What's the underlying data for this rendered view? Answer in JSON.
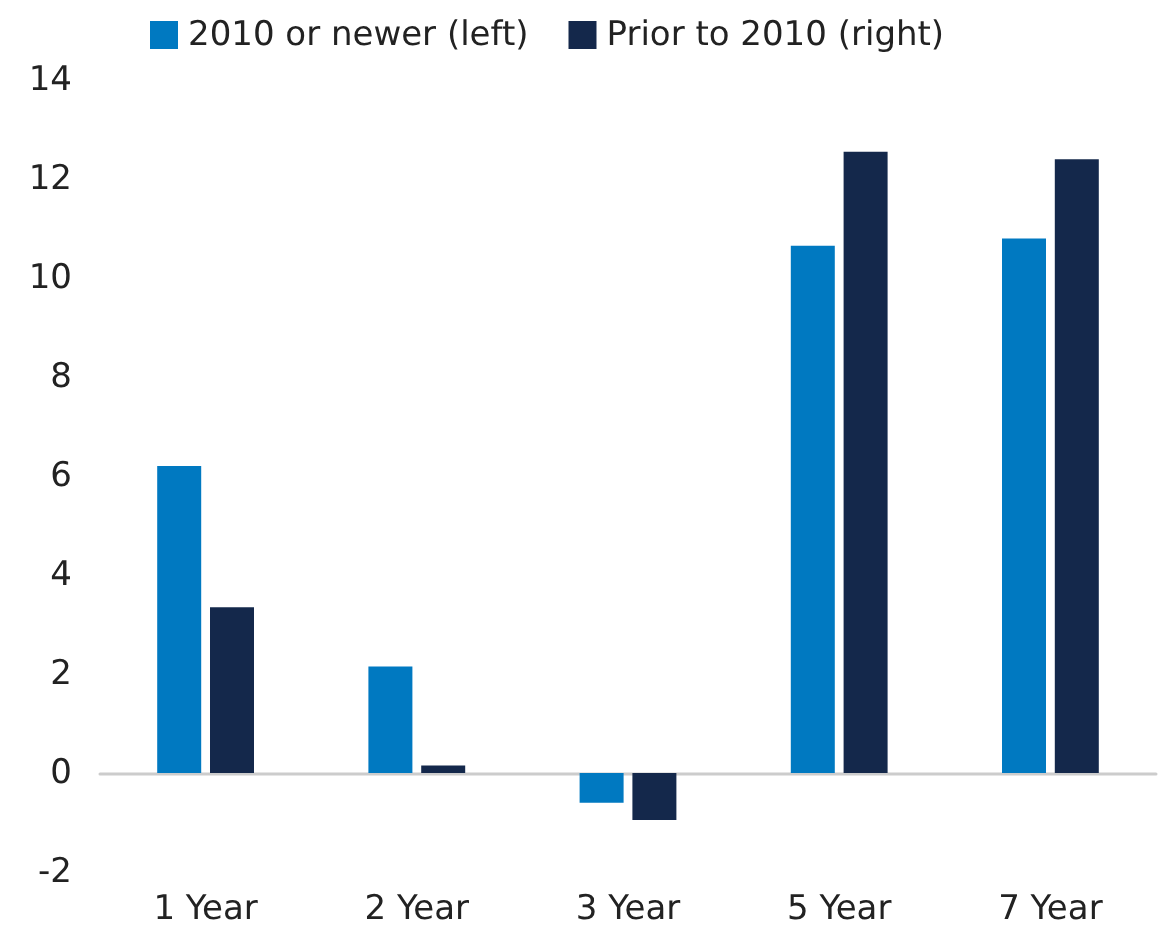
{
  "chart_data": {
    "type": "bar",
    "categories": [
      "1 Year",
      "2 Year",
      "3 Year",
      "5 Year",
      "7 Year"
    ],
    "series": [
      {
        "name": "2010 or newer (left)",
        "color": "#0079c1",
        "values": [
          6.2,
          2.15,
          -0.6,
          10.65,
          10.8
        ]
      },
      {
        "name": "Prior to 2010 (right)",
        "color": "#14284b",
        "values": [
          3.35,
          0.15,
          -0.95,
          12.55,
          12.4
        ]
      }
    ],
    "ylim": [
      -2,
      14
    ],
    "yticks": [
      -2,
      0,
      2,
      4,
      6,
      8,
      10,
      12,
      14
    ],
    "legend": "top"
  }
}
